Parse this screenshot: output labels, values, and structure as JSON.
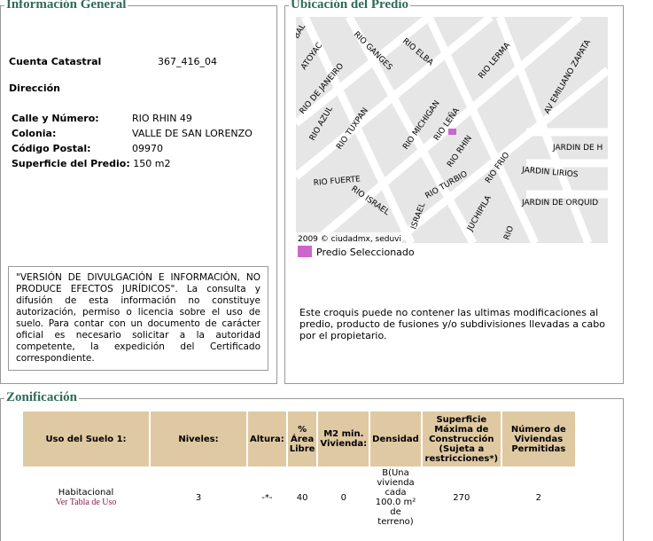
{
  "info": {
    "title": "Información General",
    "cuenta_label": "Cuenta Catastral",
    "cuenta_value": "367_416_04",
    "direccion_label": "Dirección",
    "rows": [
      {
        "label": "Calle y Número:",
        "value": "RIO RHIN 49"
      },
      {
        "label": "Colonia:",
        "value": "VALLE DE SAN LORENZO"
      },
      {
        "label": "Código Postal:",
        "value": "09970"
      },
      {
        "label": "Superficie del Predio:",
        "value": "150 m2"
      }
    ],
    "disclaimer": "\"VERSIÓN DE DIVULGACIÓN E INFORMACIÓN, NO PRODUCE EFECTOS JURÍDICOS\". La consulta y difusión de esta información no constituye autorización, permiso o licencia sobre el uso de suelo. Para contar con un documento de carácter oficial es necesario solicitar a la autoridad competente, la expedición del Certificado correspondiente."
  },
  "map": {
    "title": "Ubicación del Predio",
    "copyright": "2009 © ciudadmx, seduvi",
    "legend": "Predio Seleccionado",
    "legend_color": "#cc66cc",
    "streets": [
      "BAL",
      "ATOYAC",
      "RIO GANGES",
      "RIO ELBA",
      "RIO LERMA",
      "AV EMILIANO ZAPATA",
      "RIO DE JANEIRO",
      "RIO AZUL",
      "RIO TUXPAN",
      "RIO MICHIGAN",
      "RIO LEÑA",
      "RIO RHIN",
      "JARDIN DE H",
      "RIO FRIO",
      "JARDIN LIRIOS",
      "RIO FUERTE",
      "RIO TURBIO",
      "JUCHIPILA",
      "JARDIN DE ORQUID",
      "RIO ISRAEL",
      "ISRAEL",
      "RIO"
    ],
    "note": "Este croquis puede no contener las ultimas modificaciones al predio, producto de fusiones y/o subdivisiones llevadas a cabo por el propietario."
  },
  "zon": {
    "title": "Zonificación",
    "headers": [
      "Uso del Suelo 1:",
      "Niveles:",
      "Altura:",
      "% Área Libre",
      "M2 min. Vivienda:",
      "Densidad",
      "Superficie Máxima de Construcción (Sujeta a restricciones*)",
      "Número de Viviendas Permitidas"
    ],
    "row": {
      "uso": "Habitacional",
      "link": "Ver Tabla de Uso",
      "niveles": "3",
      "altura": "-*-",
      "area": "40",
      "m2": "0",
      "densidad": "B(Una vivienda cada 100.0 m² de terreno)",
      "superficie": "270",
      "viviendas": "2"
    }
  }
}
